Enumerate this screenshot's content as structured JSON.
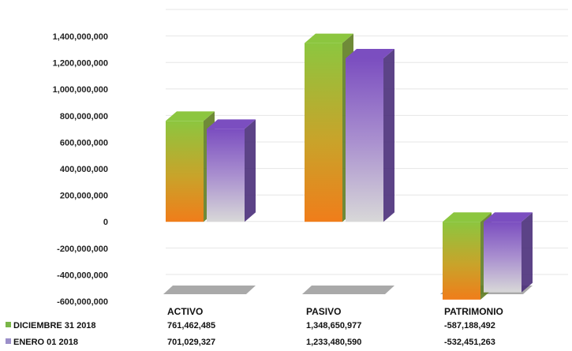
{
  "chart_data": {
    "type": "bar",
    "style": "3d-clustered-column",
    "categories": [
      "ACTIVO",
      "PASIVO",
      "PATRIMONIO"
    ],
    "series": [
      {
        "name": "DICIEMBRE 31 2018",
        "values": [
          761462485,
          1348650977,
          -587188492
        ],
        "value_labels": [
          "761,462,485",
          "1,348,650,977",
          "-587,188,492"
        ],
        "colors": {
          "top": "#8cc63f",
          "bottom": "#f07d1a",
          "legend": "#7ab648"
        }
      },
      {
        "name": "ENERO 01 2018",
        "values": [
          701029327,
          1233480590,
          -532451263
        ],
        "value_labels": [
          "701,029,327",
          "1,233,480,590",
          "-532,451,263"
        ],
        "colors": {
          "top": "#7b4ec0",
          "bottom": "#d6d6d6",
          "legend": "#9b8fc9"
        }
      }
    ],
    "yticks": [
      "1,400,000,000",
      "1,200,000,000",
      "1,000,000,000",
      "800,000,000",
      "600,000,000",
      "400,000,000",
      "200,000,000",
      "0",
      "-200,000,000",
      "-400,000,000",
      "-600,000,000"
    ],
    "ylim": [
      -600000000,
      1400000000
    ],
    "grid": true,
    "legend": "data-table"
  }
}
